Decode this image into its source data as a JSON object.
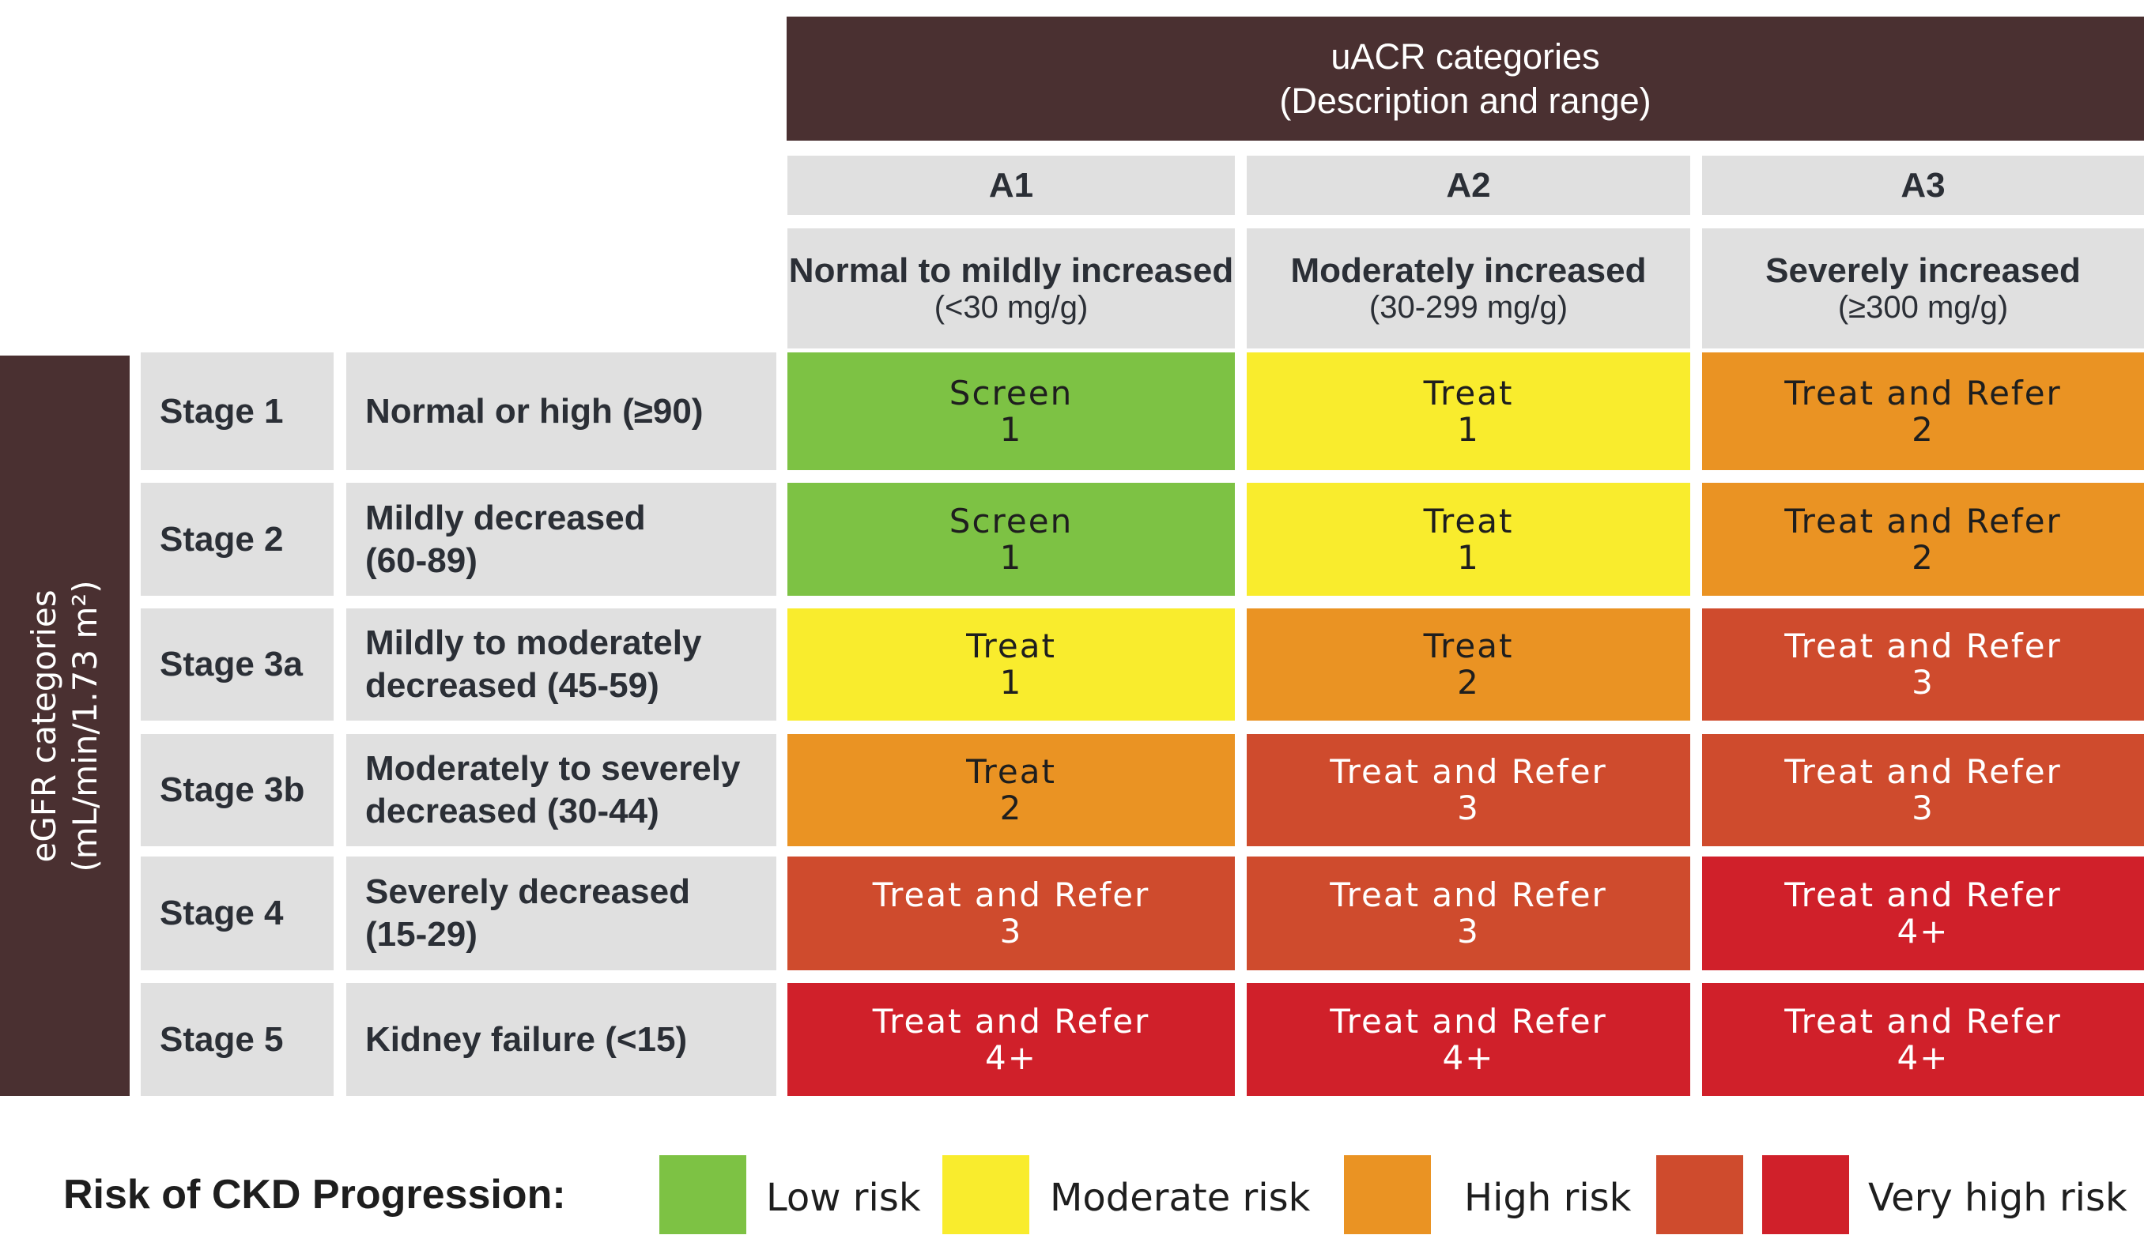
{
  "header": {
    "line1": "uACR categories",
    "line2": "(Description and range)"
  },
  "albuminuria": [
    {
      "code": "A1",
      "title": "Normal to mildly increased",
      "range": "(<30 mg/g)"
    },
    {
      "code": "A2",
      "title": "Moderately increased",
      "range": "(30-299 mg/g)"
    },
    {
      "code": "A3",
      "title": "Severely increased",
      "range": "(≥300 mg/g)"
    }
  ],
  "egfr_label": {
    "line1": "eGFR categories",
    "line2": "(mL/min/1.73 m²)"
  },
  "stages": [
    {
      "stage": "Stage 1",
      "desc": [
        "Normal or high (≥90)"
      ]
    },
    {
      "stage": "Stage 2",
      "desc": [
        "Mildly decreased",
        "(60-89)"
      ]
    },
    {
      "stage": "Stage 3a",
      "desc": [
        "Mildly to moderately",
        "decreased (45-59)"
      ]
    },
    {
      "stage": "Stage 3b",
      "desc": [
        "Moderately to severely",
        "decreased (30-44)"
      ]
    },
    {
      "stage": "Stage 4",
      "desc": [
        "Severely decreased",
        "(15-29)"
      ]
    },
    {
      "stage": "Stage 5",
      "desc": [
        "Kidney failure (<15)"
      ]
    }
  ],
  "cells": [
    [
      {
        "action": "Screen",
        "freq": "1",
        "risk": "low"
      },
      {
        "action": "Treat",
        "freq": "1",
        "risk": "moderate"
      },
      {
        "action": "Treat and Refer",
        "freq": "2",
        "risk": "high"
      }
    ],
    [
      {
        "action": "Screen",
        "freq": "1",
        "risk": "low"
      },
      {
        "action": "Treat",
        "freq": "1",
        "risk": "moderate"
      },
      {
        "action": "Treat and Refer",
        "freq": "2",
        "risk": "high"
      }
    ],
    [
      {
        "action": "Treat",
        "freq": "1",
        "risk": "moderate"
      },
      {
        "action": "Treat",
        "freq": "2",
        "risk": "high"
      },
      {
        "action": "Treat and Refer",
        "freq": "3",
        "risk": "very_high"
      }
    ],
    [
      {
        "action": "Treat",
        "freq": "2",
        "risk": "high"
      },
      {
        "action": "Treat and Refer",
        "freq": "3",
        "risk": "very_high"
      },
      {
        "action": "Treat and Refer",
        "freq": "3",
        "risk": "very_high"
      }
    ],
    [
      {
        "action": "Treat and Refer",
        "freq": "3",
        "risk": "very_high"
      },
      {
        "action": "Treat and Refer",
        "freq": "3",
        "risk": "very_high"
      },
      {
        "action": "Treat and Refer",
        "freq": "4+",
        "risk": "highest"
      }
    ],
    [
      {
        "action": "Treat and Refer",
        "freq": "4+",
        "risk": "highest"
      },
      {
        "action": "Treat and Refer",
        "freq": "4+",
        "risk": "highest"
      },
      {
        "action": "Treat and Refer",
        "freq": "4+",
        "risk": "highest"
      }
    ]
  ],
  "colors": {
    "low": "#7dc244",
    "moderate": "#f9ec2d",
    "high": "#ea9323",
    "very_high": "#cf4b2d",
    "highest": "#d0202a",
    "header": "#4a3031",
    "label_bg": "#e0e0e0"
  },
  "legend": {
    "title": "Risk of CKD Progression:",
    "items": [
      {
        "label": "Low risk",
        "swatches": [
          "low"
        ]
      },
      {
        "label": "Moderate risk",
        "swatches": [
          "moderate"
        ]
      },
      {
        "label": "High risk",
        "swatches": [
          "high"
        ]
      },
      {
        "label": "Very high risk",
        "swatches": [
          "very_high",
          "highest"
        ]
      }
    ]
  }
}
